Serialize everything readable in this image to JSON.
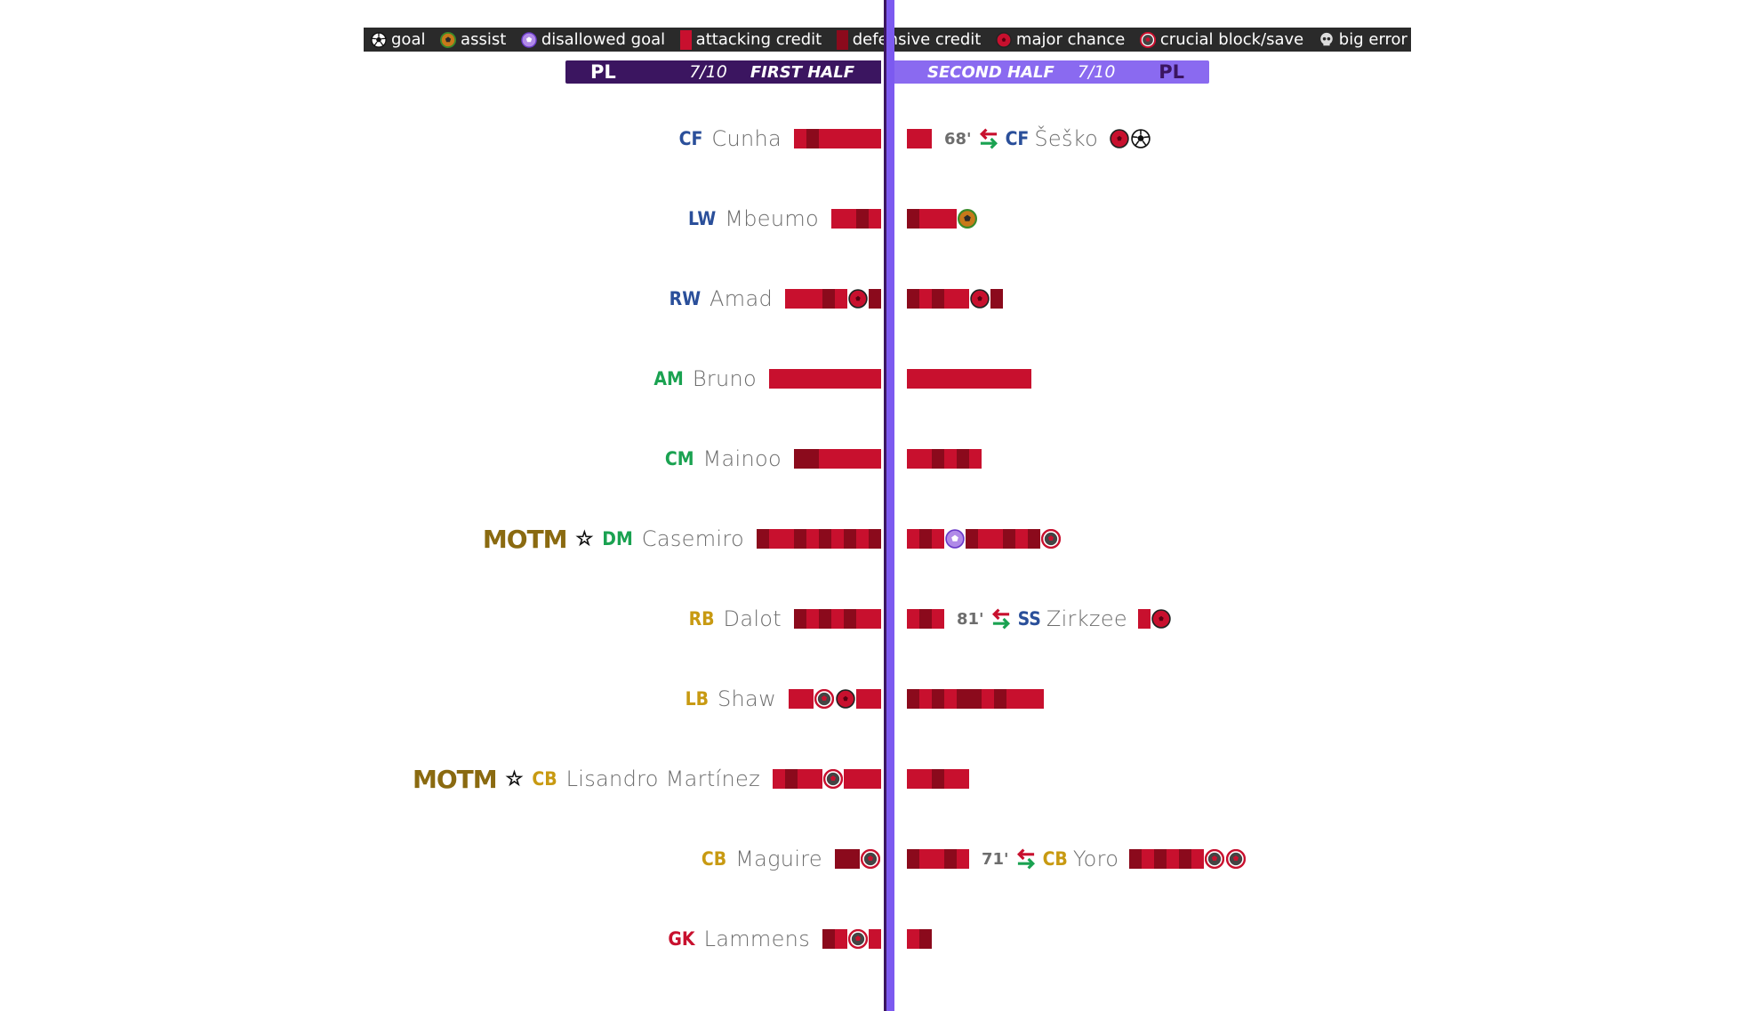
{
  "legend": {
    "items": [
      {
        "label": "goal",
        "icon": "goal-icon"
      },
      {
        "label": "assist",
        "icon": "assist-icon"
      },
      {
        "label": "disallowed goal",
        "icon": "disallowed-goal-icon"
      },
      {
        "label": "attacking credit",
        "icon": "attacking-bar"
      },
      {
        "label": "defensive credit",
        "icon": "defensive-bar"
      },
      {
        "label": "major chance",
        "icon": "major-chance-icon"
      },
      {
        "label": "crucial block/save",
        "icon": "crucial-block-icon"
      },
      {
        "label": "big error",
        "icon": "skull-icon"
      }
    ]
  },
  "halves": {
    "first": {
      "competition": "PL",
      "rating": "7/10",
      "title": "FIRST HALF"
    },
    "second": {
      "competition": "PL",
      "rating": "7/10",
      "title": "SECOND HALF"
    }
  },
  "colors": {
    "attacking": "#c8102e",
    "defensive": "#8b0a1c",
    "axis": "#7c5af0",
    "axis_dark": "#3b1560",
    "pos_attack": "#2a4f9a",
    "pos_mid": "#1aa251",
    "pos_def": "#c89a12",
    "pos_gk": "#c8102e",
    "motm": "#8a6a10"
  },
  "chart_data": {
    "type": "bar",
    "note_units": "credit segments; A = attacking credit, D = defensive credit; events shown as icons",
    "rows": [
      {
        "pos": "CF",
        "name": "Cunha",
        "group": "attack",
        "first": [
          "A",
          "D",
          "A",
          "A",
          "A",
          "A",
          "A"
        ],
        "second": [
          "A",
          "A"
        ],
        "second_sub": {
          "minute": "68'",
          "pos": "CF",
          "name": "Šeško",
          "group": "attack",
          "bar": [],
          "events": [
            "major-chance",
            "goal"
          ]
        }
      },
      {
        "pos": "LW",
        "name": "Mbeumo",
        "group": "attack",
        "first": [
          "A",
          "A",
          "D",
          "A"
        ],
        "second": [
          "D",
          "A",
          "A",
          "A",
          "assist"
        ]
      },
      {
        "pos": "RW",
        "name": "Amad",
        "group": "attack",
        "first": [
          "A",
          "A",
          "A",
          "D",
          "A",
          "major-chance",
          "D"
        ],
        "second": [
          "D",
          "A",
          "D",
          "A",
          "A",
          "major-chance",
          "D"
        ]
      },
      {
        "pos": "AM",
        "name": "Bruno",
        "group": "mid",
        "first": [
          "A",
          "A",
          "A",
          "A",
          "A",
          "A",
          "A",
          "A",
          "A"
        ],
        "second": [
          "A",
          "A",
          "A",
          "A",
          "A",
          "A",
          "A",
          "A",
          "A",
          "A"
        ]
      },
      {
        "pos": "CM",
        "name": "Mainoo",
        "group": "mid",
        "first": [
          "D",
          "D",
          "A",
          "A",
          "A",
          "A",
          "A"
        ],
        "second": [
          "A",
          "A",
          "D",
          "A",
          "D",
          "A"
        ]
      },
      {
        "pos": "DM",
        "name": "Casemiro",
        "group": "mid",
        "motm": true,
        "first": [
          "D",
          "A",
          "A",
          "D",
          "A",
          "D",
          "A",
          "D",
          "A",
          "D"
        ],
        "second": [
          "A",
          "D",
          "A",
          "disallowed-goal",
          "D",
          "A",
          "A",
          "D",
          "A",
          "D",
          "crucial-block"
        ]
      },
      {
        "pos": "RB",
        "name": "Dalot",
        "group": "def",
        "first": [
          "D",
          "A",
          "D",
          "A",
          "D",
          "A",
          "A"
        ],
        "second": [
          "A",
          "D",
          "A"
        ],
        "second_sub": {
          "minute": "81'",
          "pos": "SS",
          "name": "Zirkzee",
          "group": "attack",
          "bar": [
            "A"
          ],
          "events": [
            "major-chance"
          ]
        }
      },
      {
        "pos": "LB",
        "name": "Shaw",
        "group": "def",
        "first": [
          "A",
          "A",
          "crucial-block",
          "major-chance",
          "A",
          "A"
        ],
        "second": [
          "D",
          "A",
          "D",
          "A",
          "D",
          "D",
          "A",
          "D",
          "A",
          "A",
          "A"
        ]
      },
      {
        "pos": "CB",
        "name": "Lisandro Martínez",
        "group": "def",
        "motm": true,
        "first": [
          "A",
          "D",
          "A",
          "A",
          "crucial-block",
          "A",
          "A",
          "A"
        ],
        "second": [
          "A",
          "A",
          "D",
          "A",
          "A"
        ]
      },
      {
        "pos": "CB",
        "name": "Maguire",
        "group": "def",
        "first": [
          "D",
          "D",
          "crucial-block"
        ],
        "second": [
          "D",
          "A",
          "A",
          "D",
          "A"
        ],
        "second_sub": {
          "minute": "71'",
          "pos": "CB",
          "name": "Yoro",
          "group": "def",
          "bar": [
            "D",
            "A",
            "D",
            "A",
            "D",
            "A"
          ],
          "events": [
            "crucial-block",
            "crucial-block"
          ]
        }
      },
      {
        "pos": "GK",
        "name": "Lammens",
        "group": "gk",
        "first": [
          "D",
          "A",
          "crucial-block",
          "A"
        ],
        "second": [
          "A",
          "D"
        ]
      }
    ],
    "motm_label": "MOTM"
  }
}
